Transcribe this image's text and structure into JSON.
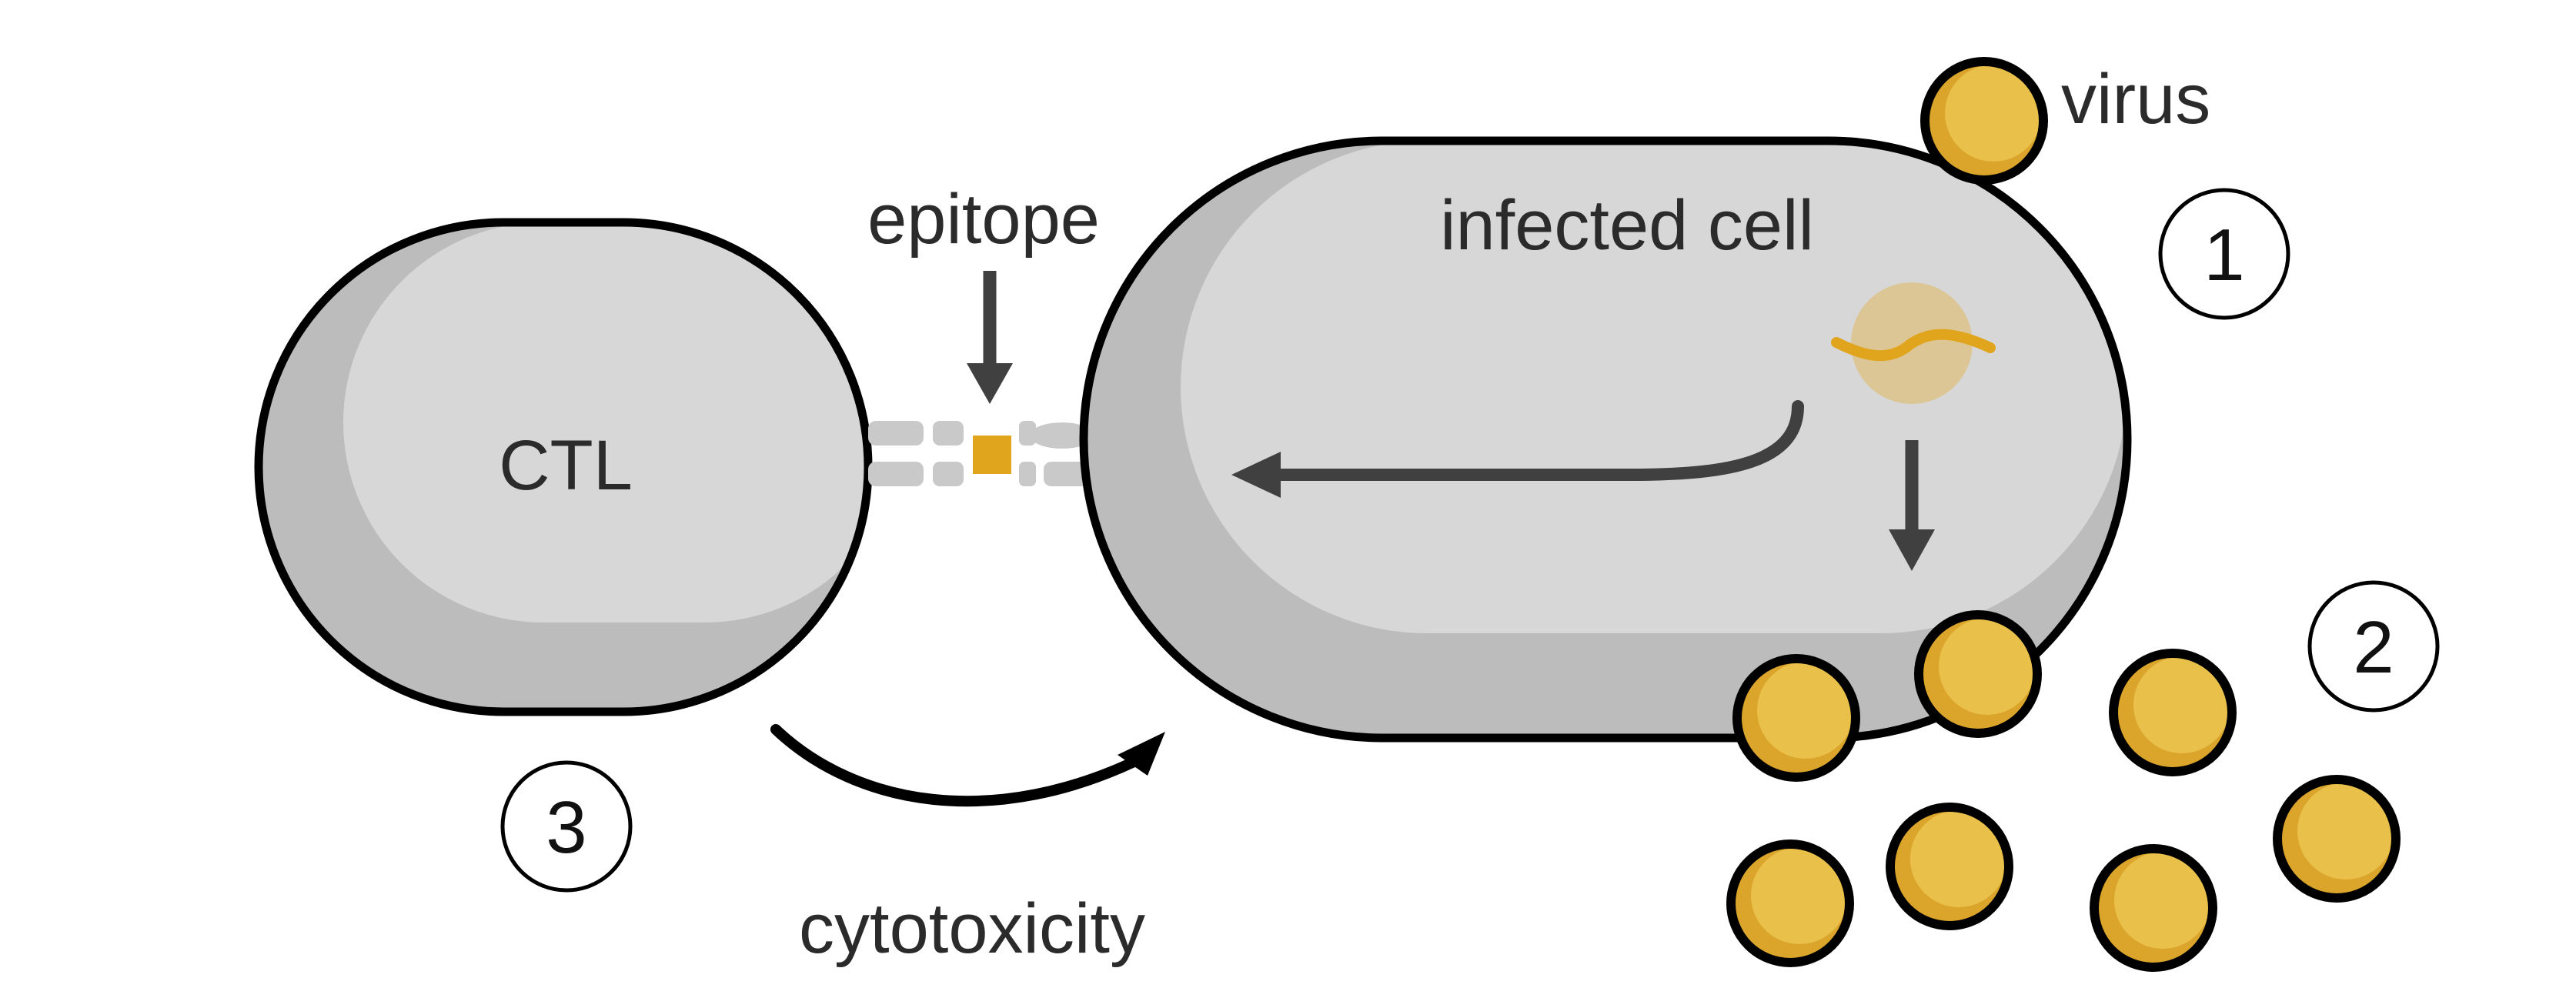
{
  "labels": {
    "ctl": "CTL",
    "infected_cell": "infected cell",
    "virus": "virus",
    "epitope": "epitope",
    "cytotoxicity": "cytotoxicity"
  },
  "steps": [
    "1",
    "2",
    "3"
  ],
  "colors": {
    "cell_fill": "#d7d7d7",
    "cell_shadow": "#bcbcbc",
    "outline": "#000000",
    "virus_fill": "#e9c04a",
    "virus_shade": "#dba42a",
    "epitope": "#e0a51c",
    "nucleus": "#dfc286",
    "arrow": "#404040",
    "receptor": "#c9c9c9"
  }
}
